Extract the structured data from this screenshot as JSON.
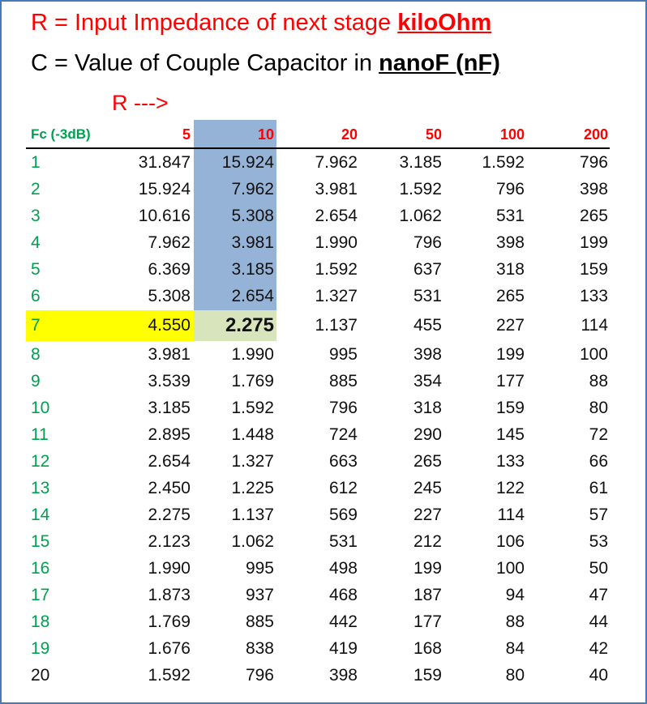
{
  "heading": {
    "line1_prefix": "R = Input Impedance of next stage ",
    "line1_unit": "kiloOhm",
    "line2_prefix": "C = Value of Couple Capacitor in ",
    "line2_unit": "nanoF (nF)",
    "r_arrow": "R --->"
  },
  "table": {
    "corner_label": "Fc (-3dB)",
    "r_values": [
      "5",
      "10",
      "20",
      "50",
      "100",
      "200"
    ],
    "highlighted_column": "10",
    "highlighted_row": "7",
    "colors": {
      "r_header": "#ff0000",
      "fc_label": "#00a050",
      "blue_band": "#95b3d7",
      "yellow": "#ffff00",
      "green": "#d8e4bc"
    },
    "rows": [
      {
        "fc": "1",
        "values": [
          "31.847",
          "15.924",
          "7.962",
          "3.185",
          "1.592",
          "796"
        ]
      },
      {
        "fc": "2",
        "values": [
          "15.924",
          "7.962",
          "3.981",
          "1.592",
          "796",
          "398"
        ]
      },
      {
        "fc": "3",
        "values": [
          "10.616",
          "5.308",
          "2.654",
          "1.062",
          "531",
          "265"
        ]
      },
      {
        "fc": "4",
        "values": [
          "7.962",
          "3.981",
          "1.990",
          "796",
          "398",
          "199"
        ]
      },
      {
        "fc": "5",
        "values": [
          "6.369",
          "3.185",
          "1.592",
          "637",
          "318",
          "159"
        ]
      },
      {
        "fc": "6",
        "values": [
          "5.308",
          "2.654",
          "1.327",
          "531",
          "265",
          "133"
        ]
      },
      {
        "fc": "7",
        "values": [
          "4.550",
          "2.275",
          "1.137",
          "455",
          "227",
          "114"
        ]
      },
      {
        "fc": "8",
        "values": [
          "3.981",
          "1.990",
          "995",
          "398",
          "199",
          "100"
        ]
      },
      {
        "fc": "9",
        "values": [
          "3.539",
          "1.769",
          "885",
          "354",
          "177",
          "88"
        ]
      },
      {
        "fc": "10",
        "values": [
          "3.185",
          "1.592",
          "796",
          "318",
          "159",
          "80"
        ]
      },
      {
        "fc": "11",
        "values": [
          "2.895",
          "1.448",
          "724",
          "290",
          "145",
          "72"
        ]
      },
      {
        "fc": "12",
        "values": [
          "2.654",
          "1.327",
          "663",
          "265",
          "133",
          "66"
        ]
      },
      {
        "fc": "13",
        "values": [
          "2.450",
          "1.225",
          "612",
          "245",
          "122",
          "61"
        ]
      },
      {
        "fc": "14",
        "values": [
          "2.275",
          "1.137",
          "569",
          "227",
          "114",
          "57"
        ]
      },
      {
        "fc": "15",
        "values": [
          "2.123",
          "1.062",
          "531",
          "212",
          "106",
          "53"
        ]
      },
      {
        "fc": "16",
        "values": [
          "1.990",
          "995",
          "498",
          "199",
          "100",
          "50"
        ]
      },
      {
        "fc": "17",
        "values": [
          "1.873",
          "937",
          "468",
          "187",
          "94",
          "47"
        ]
      },
      {
        "fc": "18",
        "values": [
          "1.769",
          "885",
          "442",
          "177",
          "88",
          "44"
        ]
      },
      {
        "fc": "19",
        "values": [
          "1.676",
          "838",
          "419",
          "168",
          "84",
          "42"
        ]
      },
      {
        "fc": "20",
        "values": [
          "1.592",
          "796",
          "398",
          "159",
          "80",
          "40"
        ]
      }
    ]
  }
}
